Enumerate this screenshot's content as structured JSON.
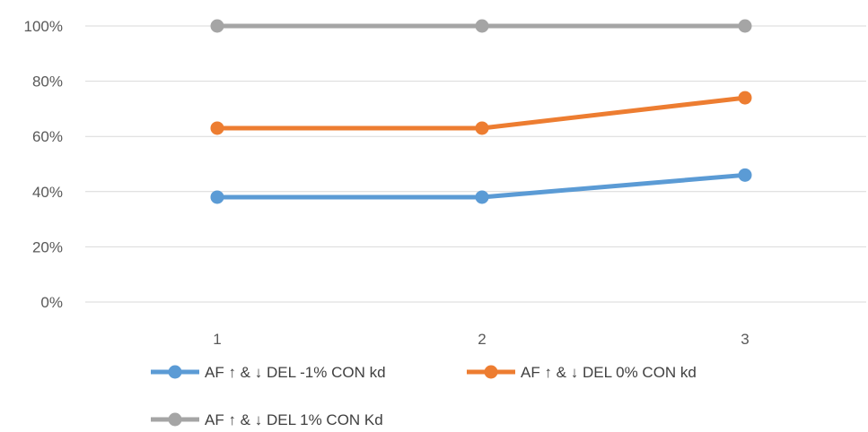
{
  "chart_data": {
    "type": "line",
    "categories": [
      "1",
      "2",
      "3"
    ],
    "y_ticks": [
      "0%",
      "20%",
      "40%",
      "60%",
      "80%",
      "100%"
    ],
    "ylim": [
      0,
      100
    ],
    "grid": true,
    "legend_position": "bottom",
    "series": [
      {
        "name": "AF ↑ & ↓ DEL -1% CON kd",
        "color": "#5B9BD5",
        "values": [
          38,
          38,
          46
        ]
      },
      {
        "name": "AF ↑ & ↓ DEL 0% CON kd",
        "color": "#ED7D31",
        "values": [
          63,
          63,
          74
        ]
      },
      {
        "name": "AF ↑ & ↓ DEL 1% CON Kd",
        "color": "#A5A5A5",
        "values": [
          100,
          100,
          100
        ]
      }
    ]
  }
}
